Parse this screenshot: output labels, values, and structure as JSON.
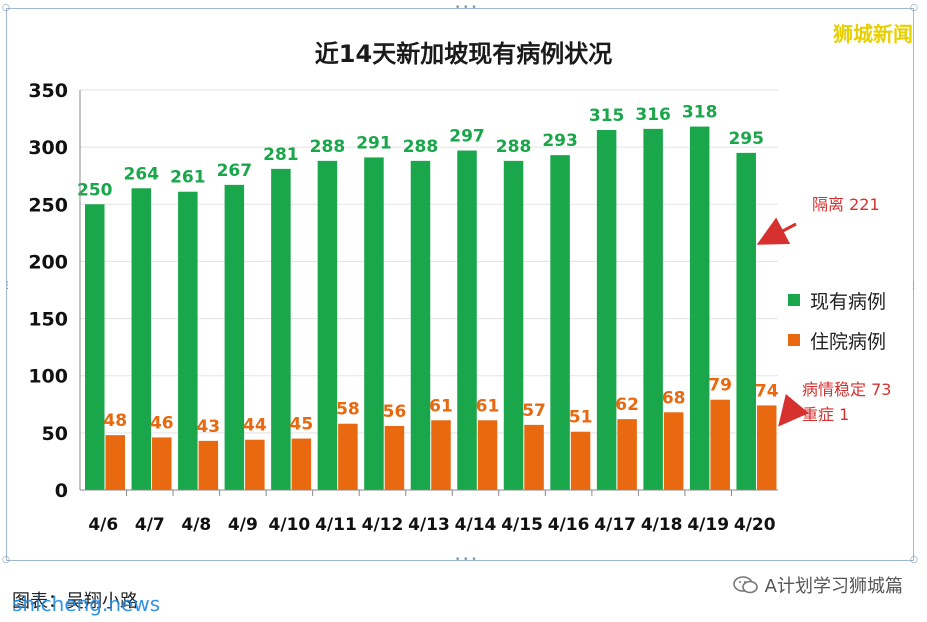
{
  "title": "近14天新加坡现有病例状况",
  "watermark": "狮城新闻",
  "legend": {
    "active": "现有病例",
    "hospital": "住院病例"
  },
  "annotations": {
    "isolation": "隔离 221",
    "stable": "病情稳定 73",
    "severe": "重症 1"
  },
  "footer": {
    "caption": "图表：吴翔小路",
    "site": "shicheng.news",
    "wechat": "A计划学习狮城篇"
  },
  "colors": {
    "active": "#1aa64a",
    "hospital": "#e8690f",
    "arrow": "#d6312f"
  },
  "chart_data": {
    "type": "bar",
    "title": "近14天新加坡现有病例状况",
    "categories": [
      "4/6",
      "4/7",
      "4/8",
      "4/9",
      "4/10",
      "4/11",
      "4/12",
      "4/13",
      "4/14",
      "4/15",
      "4/16",
      "4/17",
      "4/18",
      "4/19",
      "4/20"
    ],
    "series": [
      {
        "name": "现有病例",
        "values": [
          250,
          264,
          261,
          267,
          281,
          288,
          291,
          288,
          297,
          288,
          293,
          315,
          316,
          318,
          295
        ]
      },
      {
        "name": "住院病例",
        "values": [
          48,
          46,
          43,
          44,
          45,
          58,
          56,
          61,
          61,
          57,
          51,
          62,
          68,
          79,
          74
        ]
      }
    ],
    "ylim": [
      0,
      350
    ],
    "yticks": [
      0,
      50,
      100,
      150,
      200,
      250,
      300,
      350
    ],
    "grid": true,
    "legend": "right"
  }
}
